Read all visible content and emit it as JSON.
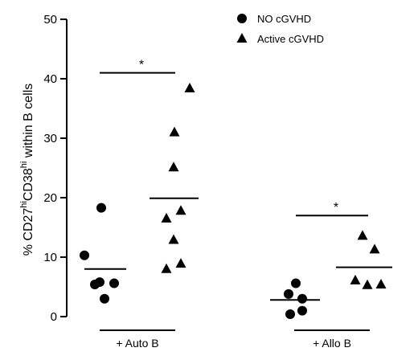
{
  "chart_data": {
    "type": "scatter",
    "ylabel": {
      "pre": "% CD27",
      "sup1": "hi",
      "mid": "CD38",
      "sup2": "hi",
      "post": " within B cells"
    },
    "ylim": [
      0,
      50
    ],
    "yticks": [
      "0",
      "10",
      "20",
      "30",
      "40",
      "50"
    ],
    "groups": [
      {
        "label": "+ Auto B"
      },
      {
        "label": "+ Allo B"
      }
    ],
    "series": [
      {
        "name": "NO cGVHD",
        "marker": "circle",
        "groups": [
          {
            "values": [
              18.3,
              10.3,
              5.8,
              5.4,
              5.6,
              3.0
            ],
            "mean": 8.0
          },
          {
            "values": [
              5.6,
              3.8,
              3.0,
              1.0,
              0.4
            ],
            "mean": 2.8
          }
        ]
      },
      {
        "name": "Active cGVHD",
        "marker": "triangle",
        "groups": [
          {
            "values": [
              38.4,
              31.0,
              25.1,
              17.8,
              16.5,
              12.9,
              8.9,
              8.0
            ],
            "mean": 19.9
          },
          {
            "values": [
              13.6,
              11.3,
              6.1,
              5.3,
              5.4
            ],
            "mean": 8.3
          }
        ]
      }
    ],
    "significance": [
      {
        "group": 0,
        "y": 41,
        "label": "*"
      },
      {
        "group": 1,
        "y": 17,
        "label": "*"
      }
    ],
    "legend_position": "top-right",
    "grid": false
  }
}
